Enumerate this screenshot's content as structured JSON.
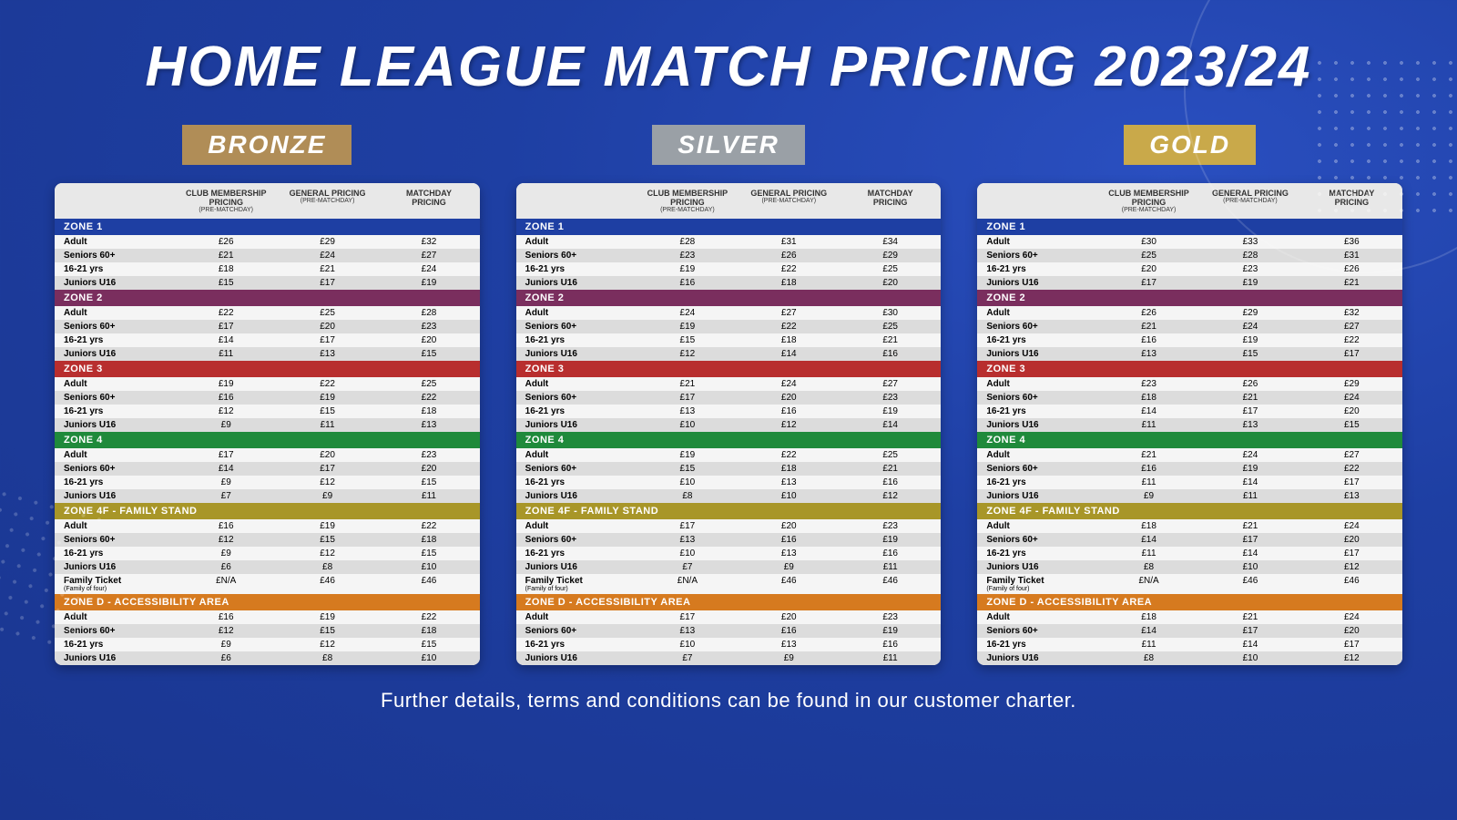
{
  "title": "HOME LEAGUE MATCH PRICING 2023/24",
  "footer": "Further details, terms and conditions can be found in our customer charter.",
  "columns": {
    "c1": "CLUB MEMBERSHIP PRICING",
    "c1s": "(PRE-MATCHDAY)",
    "c2": "GENERAL PRICING",
    "c2s": "(PRE-MATCHDAY)",
    "c3": "MATCHDAY",
    "c3b": "PRICING"
  },
  "zone_colors": {
    "z1": "#1e3fa3",
    "z2": "#7a2e5e",
    "z3": "#b82e2e",
    "z4": "#1f8a3b",
    "z4f": "#a89628",
    "zd": "#d67a1f"
  },
  "badge_colors": {
    "bronze": "#b08d57",
    "silver": "#9aa0a6",
    "gold": "#c9a94a"
  },
  "categories": [
    "Adult",
    "Seniors 60+",
    "16-21 yrs",
    "Juniors U16"
  ],
  "family_label": "Family Ticket",
  "family_sub": "(Family of four)",
  "zones": [
    {
      "k": "z1",
      "name": "ZONE 1"
    },
    {
      "k": "z2",
      "name": "ZONE 2"
    },
    {
      "k": "z3",
      "name": "ZONE 3"
    },
    {
      "k": "z4",
      "name": "ZONE 4"
    },
    {
      "k": "z4f",
      "name": "ZONE 4F - FAMILY STAND",
      "family": true
    },
    {
      "k": "zd",
      "name": "ZONE D - ACCESSIBILITY AREA"
    }
  ],
  "tiers": [
    {
      "name": "BRONZE",
      "badge": "bronze",
      "data": {
        "z1": [
          [
            "£26",
            "£29",
            "£32"
          ],
          [
            "£21",
            "£24",
            "£27"
          ],
          [
            "£18",
            "£21",
            "£24"
          ],
          [
            "£15",
            "£17",
            "£19"
          ]
        ],
        "z2": [
          [
            "£22",
            "£25",
            "£28"
          ],
          [
            "£17",
            "£20",
            "£23"
          ],
          [
            "£14",
            "£17",
            "£20"
          ],
          [
            "£11",
            "£13",
            "£15"
          ]
        ],
        "z3": [
          [
            "£19",
            "£22",
            "£25"
          ],
          [
            "£16",
            "£19",
            "£22"
          ],
          [
            "£12",
            "£15",
            "£18"
          ],
          [
            "£9",
            "£11",
            "£13"
          ]
        ],
        "z4": [
          [
            "£17",
            "£20",
            "£23"
          ],
          [
            "£14",
            "£17",
            "£20"
          ],
          [
            "£9",
            "£12",
            "£15"
          ],
          [
            "£7",
            "£9",
            "£11"
          ]
        ],
        "z4f": [
          [
            "£16",
            "£19",
            "£22"
          ],
          [
            "£12",
            "£15",
            "£18"
          ],
          [
            "£9",
            "£12",
            "£15"
          ],
          [
            "£6",
            "£8",
            "£10"
          ],
          [
            "£N/A",
            "£46",
            "£46"
          ]
        ],
        "zd": [
          [
            "£16",
            "£19",
            "£22"
          ],
          [
            "£12",
            "£15",
            "£18"
          ],
          [
            "£9",
            "£12",
            "£15"
          ],
          [
            "£6",
            "£8",
            "£10"
          ]
        ]
      }
    },
    {
      "name": "SILVER",
      "badge": "silver",
      "data": {
        "z1": [
          [
            "£28",
            "£31",
            "£34"
          ],
          [
            "£23",
            "£26",
            "£29"
          ],
          [
            "£19",
            "£22",
            "£25"
          ],
          [
            "£16",
            "£18",
            "£20"
          ]
        ],
        "z2": [
          [
            "£24",
            "£27",
            "£30"
          ],
          [
            "£19",
            "£22",
            "£25"
          ],
          [
            "£15",
            "£18",
            "£21"
          ],
          [
            "£12",
            "£14",
            "£16"
          ]
        ],
        "z3": [
          [
            "£21",
            "£24",
            "£27"
          ],
          [
            "£17",
            "£20",
            "£23"
          ],
          [
            "£13",
            "£16",
            "£19"
          ],
          [
            "£10",
            "£12",
            "£14"
          ]
        ],
        "z4": [
          [
            "£19",
            "£22",
            "£25"
          ],
          [
            "£15",
            "£18",
            "£21"
          ],
          [
            "£10",
            "£13",
            "£16"
          ],
          [
            "£8",
            "£10",
            "£12"
          ]
        ],
        "z4f": [
          [
            "£17",
            "£20",
            "£23"
          ],
          [
            "£13",
            "£16",
            "£19"
          ],
          [
            "£10",
            "£13",
            "£16"
          ],
          [
            "£7",
            "£9",
            "£11"
          ],
          [
            "£N/A",
            "£46",
            "£46"
          ]
        ],
        "zd": [
          [
            "£17",
            "£20",
            "£23"
          ],
          [
            "£13",
            "£16",
            "£19"
          ],
          [
            "£10",
            "£13",
            "£16"
          ],
          [
            "£7",
            "£9",
            "£11"
          ]
        ]
      }
    },
    {
      "name": "GOLD",
      "badge": "gold",
      "data": {
        "z1": [
          [
            "£30",
            "£33",
            "£36"
          ],
          [
            "£25",
            "£28",
            "£31"
          ],
          [
            "£20",
            "£23",
            "£26"
          ],
          [
            "£17",
            "£19",
            "£21"
          ]
        ],
        "z2": [
          [
            "£26",
            "£29",
            "£32"
          ],
          [
            "£21",
            "£24",
            "£27"
          ],
          [
            "£16",
            "£19",
            "£22"
          ],
          [
            "£13",
            "£15",
            "£17"
          ]
        ],
        "z3": [
          [
            "£23",
            "£26",
            "£29"
          ],
          [
            "£18",
            "£21",
            "£24"
          ],
          [
            "£14",
            "£17",
            "£20"
          ],
          [
            "£11",
            "£13",
            "£15"
          ]
        ],
        "z4": [
          [
            "£21",
            "£24",
            "£27"
          ],
          [
            "£16",
            "£19",
            "£22"
          ],
          [
            "£11",
            "£14",
            "£17"
          ],
          [
            "£9",
            "£11",
            "£13"
          ]
        ],
        "z4f": [
          [
            "£18",
            "£21",
            "£24"
          ],
          [
            "£14",
            "£17",
            "£20"
          ],
          [
            "£11",
            "£14",
            "£17"
          ],
          [
            "£8",
            "£10",
            "£12"
          ],
          [
            "£N/A",
            "£46",
            "£46"
          ]
        ],
        "zd": [
          [
            "£18",
            "£21",
            "£24"
          ],
          [
            "£14",
            "£17",
            "£20"
          ],
          [
            "£11",
            "£14",
            "£17"
          ],
          [
            "£8",
            "£10",
            "£12"
          ]
        ]
      }
    }
  ]
}
